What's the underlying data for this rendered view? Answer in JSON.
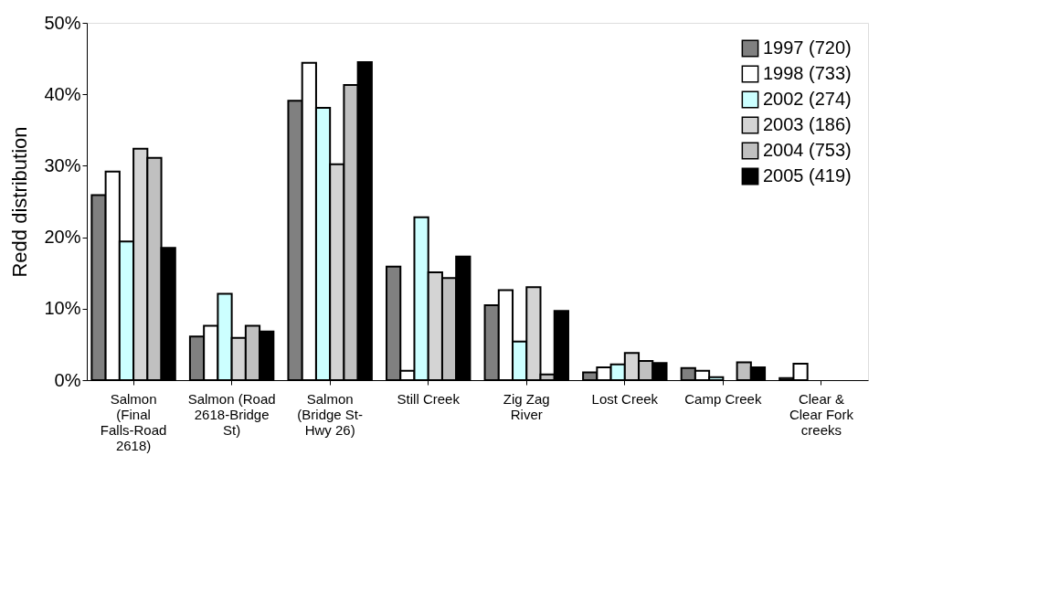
{
  "chart_data": {
    "type": "bar",
    "ylabel": "Redd distribution",
    "categories": [
      "Salmon (Final Falls-Road 2618)",
      "Salmon (Road 2618-Bridge St)",
      "Salmon (Bridge St-Hwy 26)",
      "Still Creek",
      "Zig Zag River",
      "Lost Creek",
      "Camp Creek",
      "Clear & Clear Fork creeks"
    ],
    "series": [
      {
        "name": "1997 (720)",
        "color": "#808080",
        "values": [
          25.9,
          6.1,
          39.1,
          15.9,
          10.5,
          1.1,
          1.7,
          0.3
        ]
      },
      {
        "name": "1998 (733)",
        "color": "#ffffff",
        "values": [
          29.2,
          7.6,
          44.4,
          1.3,
          12.6,
          1.8,
          1.3,
          2.3
        ]
      },
      {
        "name": "2002 (274)",
        "color": "#ccffff",
        "values": [
          19.4,
          12.1,
          38.1,
          22.8,
          5.4,
          2.2,
          0.4,
          null
        ]
      },
      {
        "name": "2003 (186)",
        "color": "#d4d4d4",
        "values": [
          32.4,
          5.9,
          30.2,
          15.1,
          13.0,
          3.8,
          null,
          null
        ]
      },
      {
        "name": "2004 (753)",
        "color": "#c0c0c0",
        "values": [
          31.1,
          7.6,
          41.3,
          14.3,
          0.8,
          2.7,
          2.5,
          null
        ]
      },
      {
        "name": "2005 (419)",
        "color": "#000000",
        "values": [
          18.5,
          6.8,
          44.5,
          17.3,
          9.7,
          2.4,
          1.8,
          null
        ]
      }
    ],
    "ylim": [
      0,
      50
    ],
    "yticks": [
      {
        "value": 0,
        "label": "0%"
      },
      {
        "value": 10,
        "label": "10%"
      },
      {
        "value": 20,
        "label": "20%"
      },
      {
        "value": 30,
        "label": "30%"
      },
      {
        "value": 40,
        "label": "40%"
      },
      {
        "value": 50,
        "label": "50%"
      }
    ],
    "grid": false,
    "legend": "top right"
  }
}
